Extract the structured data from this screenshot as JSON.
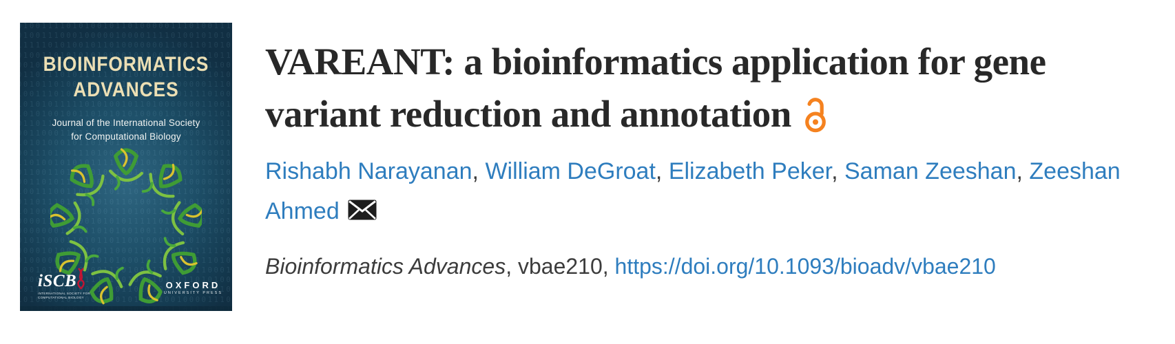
{
  "cover": {
    "journal_title_line1": "BIOINFORMATICS",
    "journal_title_line2": "ADVANCES",
    "subtitle_line1": "Journal of the International Society",
    "subtitle_line2": "for Computational Biology",
    "iscb_logo_text": "iSCB",
    "iscb_sub_line1": "INTERNATIONAL SOCIETY FOR",
    "iscb_sub_line2": "COMPUTATIONAL BIOLOGY",
    "oup_line1": "OXFORD",
    "oup_line2": "UNIVERSITY PRESS",
    "binary_pattern": "010011110101001011010000011101001110100111000100000100001111010010101011111010100101101000000011001101010010011010101010000101100011010110110010000111010111000001010011100110001101110101111110010000011011101010001011",
    "colors": {
      "background_center": "#2e6580",
      "background_edge": "#143a50",
      "title_cream": "#ecdfb4",
      "iscb_red": "#c41432"
    }
  },
  "article": {
    "title": "VAREANT: a bioinformatics application for gene variant reduction and annotation",
    "open_access_icon": "open-access-padlock",
    "authors": [
      "Rishabh Narayanan",
      "William DeGroat",
      "Elizabeth Peker",
      "Saman Zeeshan",
      "Zeeshan Ahmed"
    ],
    "authors_separator": ", ",
    "envelope_icon": "corresponding-author-email",
    "citation": {
      "journal_italic": "Bioinformatics Advances",
      "middle": ", vbae210, ",
      "doi_text": "https://doi.org/10.1093/bioadv/vbae210"
    },
    "colors": {
      "title_text": "#282828",
      "link_blue": "#2e7dbe",
      "open_access_orange": "#f5821f"
    }
  }
}
